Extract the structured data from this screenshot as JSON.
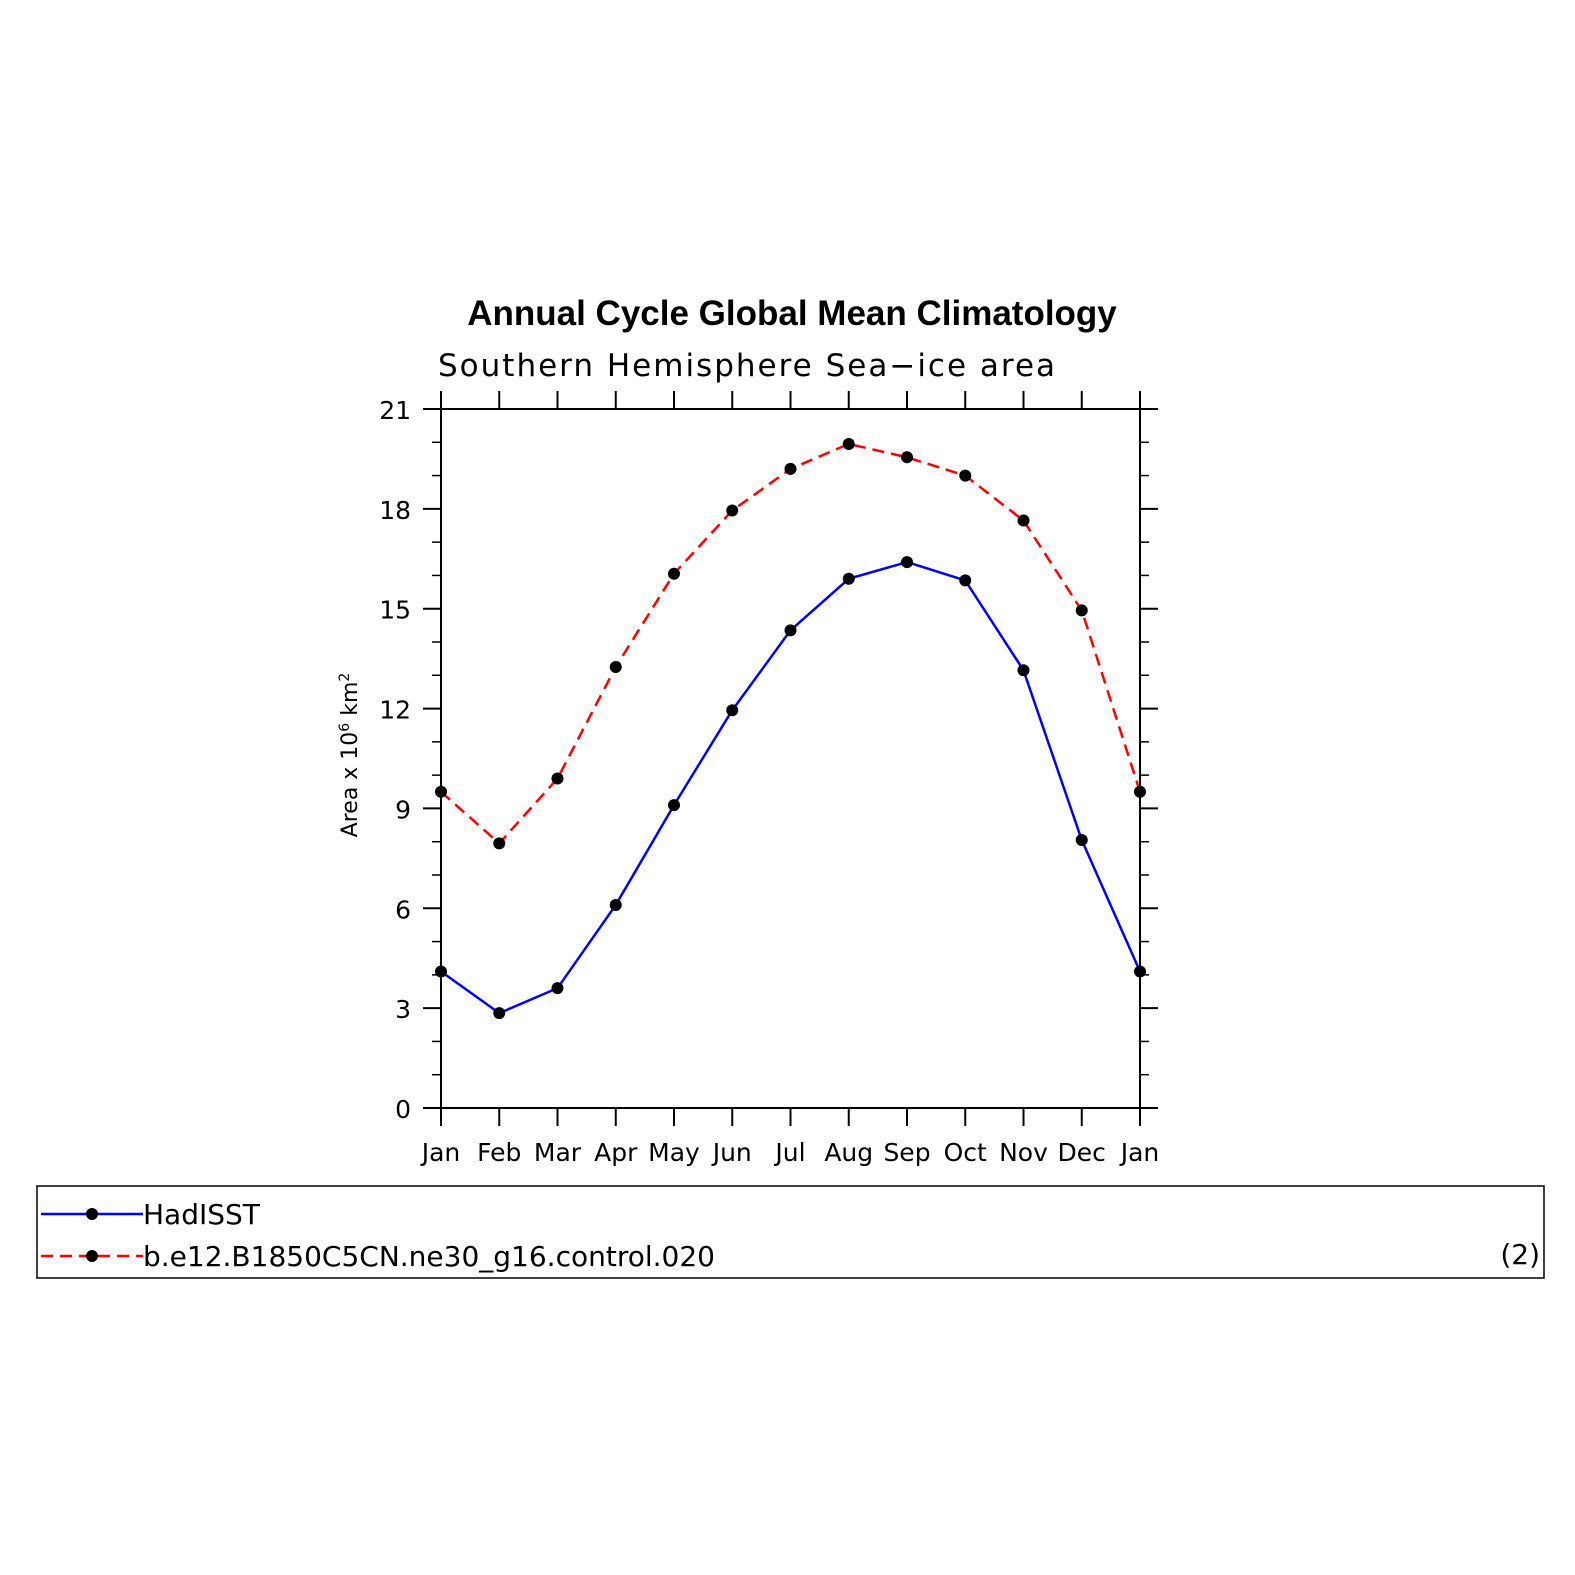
{
  "chart_data": {
    "type": "line",
    "title": "Annual Cycle Global Mean Climatology",
    "subtitle": "Southern Hemisphere Sea−ice area",
    "ylabel": "Area x 10",
    "ylabel_exp": "6",
    "ylabel_unit": " km",
    "ylabel_unit_exp": "2",
    "categories": [
      "Jan",
      "Feb",
      "Mar",
      "Apr",
      "May",
      "Jun",
      "Jul",
      "Aug",
      "Sep",
      "Oct",
      "Nov",
      "Dec",
      "Jan"
    ],
    "ylim": [
      0,
      21
    ],
    "yticks": [
      0,
      3,
      6,
      9,
      12,
      15,
      18,
      21
    ],
    "series": [
      {
        "name": "HadISST",
        "color": "#0000ff",
        "dash": "solid",
        "values": [
          4.1,
          2.85,
          3.6,
          6.1,
          9.1,
          11.95,
          14.35,
          15.9,
          16.4,
          15.85,
          13.15,
          8.05,
          4.1
        ]
      },
      {
        "name": "b.e12.B1850C5CN.ne30_g16.control.020",
        "color": "#ff0000",
        "dash": "dashed",
        "values": [
          9.5,
          7.95,
          9.9,
          13.25,
          16.05,
          17.95,
          19.2,
          19.95,
          19.55,
          19.0,
          17.65,
          14.95,
          9.5
        ]
      }
    ],
    "legend_note": "(2)",
    "legend_position": "bottom"
  }
}
